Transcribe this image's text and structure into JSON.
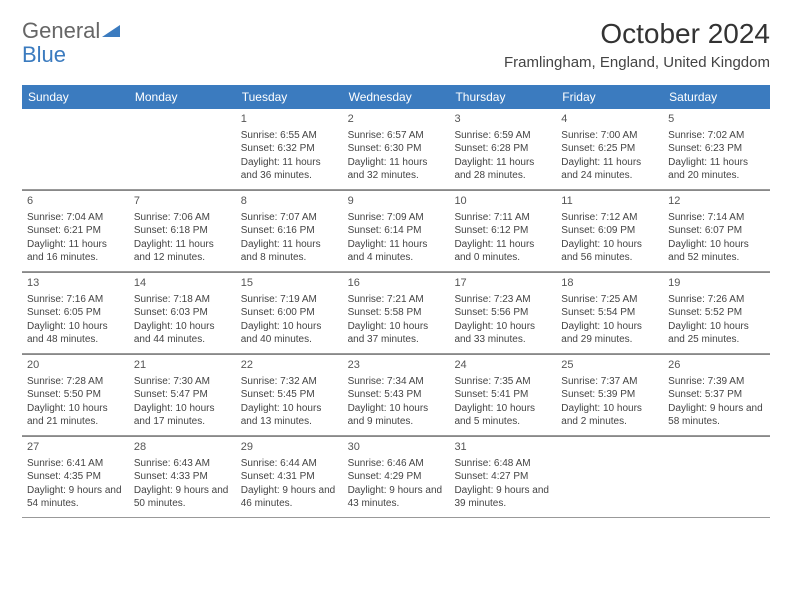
{
  "brand": {
    "part1": "General",
    "part2": "Blue"
  },
  "title": "October 2024",
  "location": "Framlingham, England, United Kingdom",
  "colors": {
    "header_bg": "#3b7bbf",
    "header_text": "#ffffff",
    "rule": "#888888",
    "text": "#444444"
  },
  "weekdays": [
    "Sunday",
    "Monday",
    "Tuesday",
    "Wednesday",
    "Thursday",
    "Friday",
    "Saturday"
  ],
  "weeks": [
    [
      {
        "n": "",
        "lines": []
      },
      {
        "n": "",
        "lines": []
      },
      {
        "n": "1",
        "lines": [
          "Sunrise: 6:55 AM",
          "Sunset: 6:32 PM",
          "Daylight: 11 hours and 36 minutes."
        ]
      },
      {
        "n": "2",
        "lines": [
          "Sunrise: 6:57 AM",
          "Sunset: 6:30 PM",
          "Daylight: 11 hours and 32 minutes."
        ]
      },
      {
        "n": "3",
        "lines": [
          "Sunrise: 6:59 AM",
          "Sunset: 6:28 PM",
          "Daylight: 11 hours and 28 minutes."
        ]
      },
      {
        "n": "4",
        "lines": [
          "Sunrise: 7:00 AM",
          "Sunset: 6:25 PM",
          "Daylight: 11 hours and 24 minutes."
        ]
      },
      {
        "n": "5",
        "lines": [
          "Sunrise: 7:02 AM",
          "Sunset: 6:23 PM",
          "Daylight: 11 hours and 20 minutes."
        ]
      }
    ],
    [
      {
        "n": "6",
        "lines": [
          "Sunrise: 7:04 AM",
          "Sunset: 6:21 PM",
          "Daylight: 11 hours and 16 minutes."
        ]
      },
      {
        "n": "7",
        "lines": [
          "Sunrise: 7:06 AM",
          "Sunset: 6:18 PM",
          "Daylight: 11 hours and 12 minutes."
        ]
      },
      {
        "n": "8",
        "lines": [
          "Sunrise: 7:07 AM",
          "Sunset: 6:16 PM",
          "Daylight: 11 hours and 8 minutes."
        ]
      },
      {
        "n": "9",
        "lines": [
          "Sunrise: 7:09 AM",
          "Sunset: 6:14 PM",
          "Daylight: 11 hours and 4 minutes."
        ]
      },
      {
        "n": "10",
        "lines": [
          "Sunrise: 7:11 AM",
          "Sunset: 6:12 PM",
          "Daylight: 11 hours and 0 minutes."
        ]
      },
      {
        "n": "11",
        "lines": [
          "Sunrise: 7:12 AM",
          "Sunset: 6:09 PM",
          "Daylight: 10 hours and 56 minutes."
        ]
      },
      {
        "n": "12",
        "lines": [
          "Sunrise: 7:14 AM",
          "Sunset: 6:07 PM",
          "Daylight: 10 hours and 52 minutes."
        ]
      }
    ],
    [
      {
        "n": "13",
        "lines": [
          "Sunrise: 7:16 AM",
          "Sunset: 6:05 PM",
          "Daylight: 10 hours and 48 minutes."
        ]
      },
      {
        "n": "14",
        "lines": [
          "Sunrise: 7:18 AM",
          "Sunset: 6:03 PM",
          "Daylight: 10 hours and 44 minutes."
        ]
      },
      {
        "n": "15",
        "lines": [
          "Sunrise: 7:19 AM",
          "Sunset: 6:00 PM",
          "Daylight: 10 hours and 40 minutes."
        ]
      },
      {
        "n": "16",
        "lines": [
          "Sunrise: 7:21 AM",
          "Sunset: 5:58 PM",
          "Daylight: 10 hours and 37 minutes."
        ]
      },
      {
        "n": "17",
        "lines": [
          "Sunrise: 7:23 AM",
          "Sunset: 5:56 PM",
          "Daylight: 10 hours and 33 minutes."
        ]
      },
      {
        "n": "18",
        "lines": [
          "Sunrise: 7:25 AM",
          "Sunset: 5:54 PM",
          "Daylight: 10 hours and 29 minutes."
        ]
      },
      {
        "n": "19",
        "lines": [
          "Sunrise: 7:26 AM",
          "Sunset: 5:52 PM",
          "Daylight: 10 hours and 25 minutes."
        ]
      }
    ],
    [
      {
        "n": "20",
        "lines": [
          "Sunrise: 7:28 AM",
          "Sunset: 5:50 PM",
          "Daylight: 10 hours and 21 minutes."
        ]
      },
      {
        "n": "21",
        "lines": [
          "Sunrise: 7:30 AM",
          "Sunset: 5:47 PM",
          "Daylight: 10 hours and 17 minutes."
        ]
      },
      {
        "n": "22",
        "lines": [
          "Sunrise: 7:32 AM",
          "Sunset: 5:45 PM",
          "Daylight: 10 hours and 13 minutes."
        ]
      },
      {
        "n": "23",
        "lines": [
          "Sunrise: 7:34 AM",
          "Sunset: 5:43 PM",
          "Daylight: 10 hours and 9 minutes."
        ]
      },
      {
        "n": "24",
        "lines": [
          "Sunrise: 7:35 AM",
          "Sunset: 5:41 PM",
          "Daylight: 10 hours and 5 minutes."
        ]
      },
      {
        "n": "25",
        "lines": [
          "Sunrise: 7:37 AM",
          "Sunset: 5:39 PM",
          "Daylight: 10 hours and 2 minutes."
        ]
      },
      {
        "n": "26",
        "lines": [
          "Sunrise: 7:39 AM",
          "Sunset: 5:37 PM",
          "Daylight: 9 hours and 58 minutes."
        ]
      }
    ],
    [
      {
        "n": "27",
        "lines": [
          "Sunrise: 6:41 AM",
          "Sunset: 4:35 PM",
          "Daylight: 9 hours and 54 minutes."
        ]
      },
      {
        "n": "28",
        "lines": [
          "Sunrise: 6:43 AM",
          "Sunset: 4:33 PM",
          "Daylight: 9 hours and 50 minutes."
        ]
      },
      {
        "n": "29",
        "lines": [
          "Sunrise: 6:44 AM",
          "Sunset: 4:31 PM",
          "Daylight: 9 hours and 46 minutes."
        ]
      },
      {
        "n": "30",
        "lines": [
          "Sunrise: 6:46 AM",
          "Sunset: 4:29 PM",
          "Daylight: 9 hours and 43 minutes."
        ]
      },
      {
        "n": "31",
        "lines": [
          "Sunrise: 6:48 AM",
          "Sunset: 4:27 PM",
          "Daylight: 9 hours and 39 minutes."
        ]
      },
      {
        "n": "",
        "lines": []
      },
      {
        "n": "",
        "lines": []
      }
    ]
  ]
}
